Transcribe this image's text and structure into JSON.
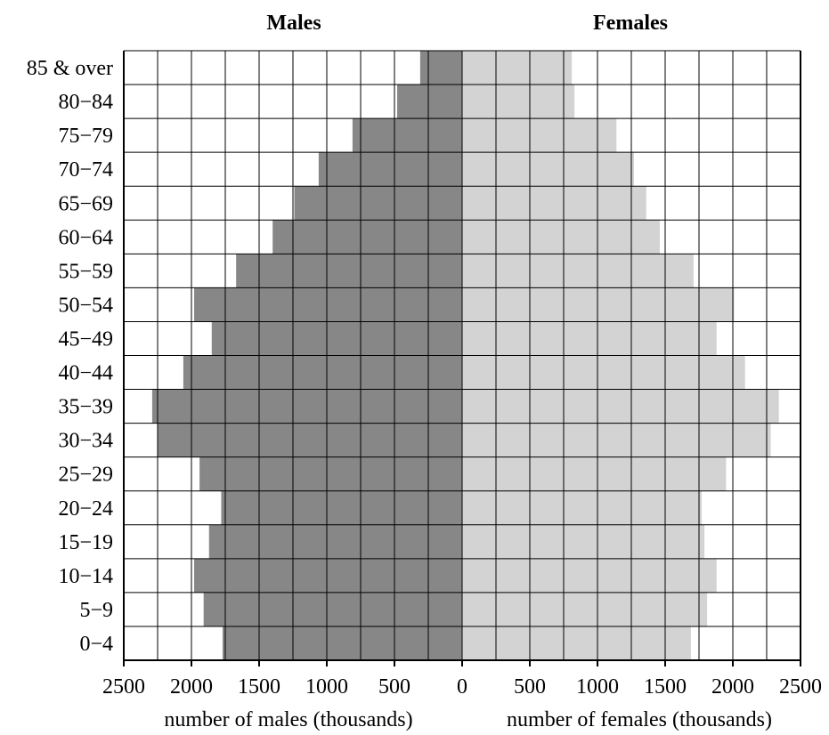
{
  "chart_data": {
    "type": "bar",
    "subtype": "population-pyramid",
    "titles": {
      "left": "Males",
      "right": "Females"
    },
    "xlabel_left": "number of males (thousands)",
    "xlabel_right": "number of females (thousands)",
    "xlim": [
      0,
      2500
    ],
    "x_ticks_left": [
      "2500",
      "2000",
      "1500",
      "1000",
      "500"
    ],
    "x_ticks_center": "0",
    "x_ticks_right": [
      "500",
      "1000",
      "1500",
      "2000",
      "2500"
    ],
    "grid": true,
    "categories": [
      "85 & over",
      "80−84",
      "75−79",
      "70−74",
      "65−69",
      "60−64",
      "55−59",
      "50−54",
      "45−49",
      "40−44",
      "35−39",
      "30−34",
      "25−29",
      "20−24",
      "15−19",
      "10−14",
      "5−9",
      "0−4"
    ],
    "series": [
      {
        "name": "Males",
        "color": "#878787",
        "values": [
          310,
          480,
          810,
          1060,
          1240,
          1400,
          1670,
          1980,
          1850,
          2060,
          2290,
          2250,
          1940,
          1780,
          1870,
          1980,
          1910,
          1770
        ]
      },
      {
        "name": "Females",
        "color": "#d3d3d3",
        "values": [
          810,
          830,
          1140,
          1270,
          1360,
          1460,
          1710,
          2010,
          1880,
          2090,
          2340,
          2280,
          1950,
          1770,
          1790,
          1880,
          1810,
          1690
        ]
      }
    ]
  }
}
